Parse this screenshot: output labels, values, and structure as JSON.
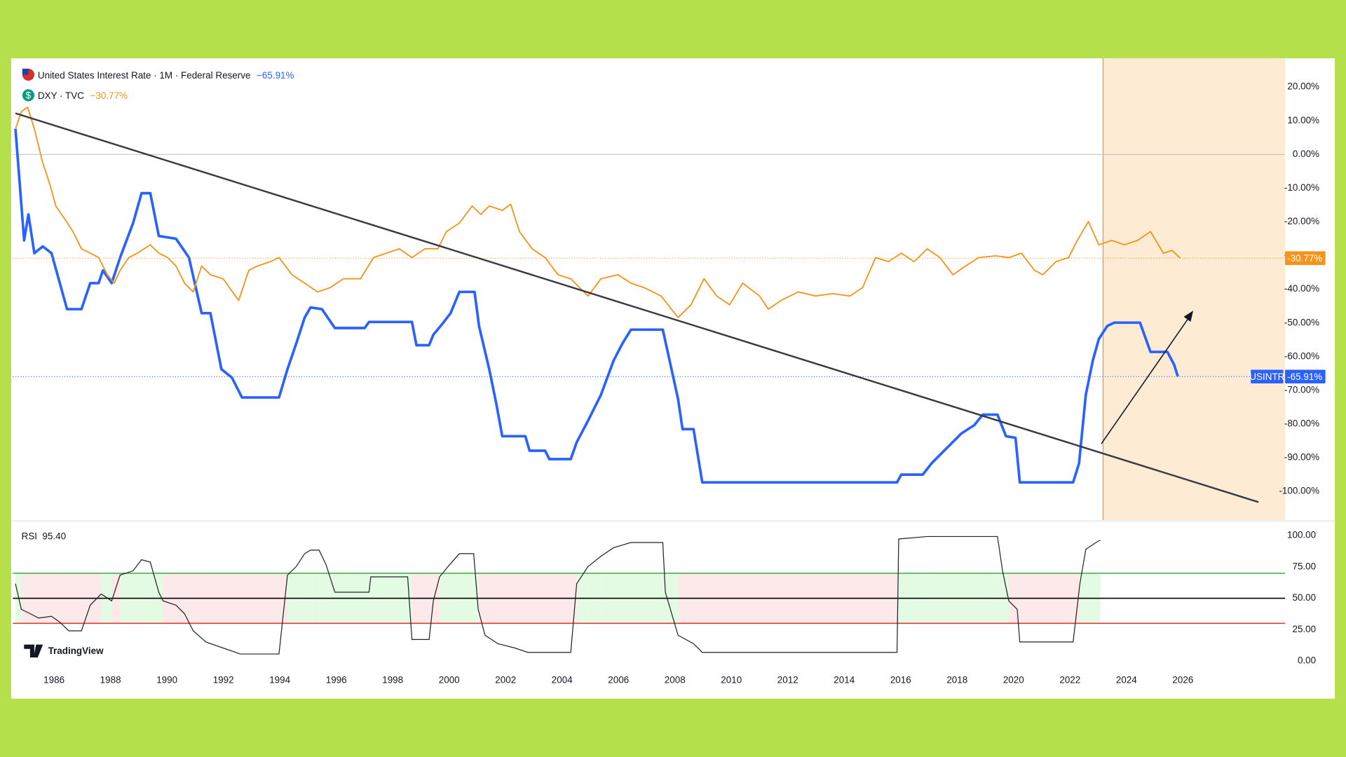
{
  "chart_data": [
    {
      "type": "line",
      "series": [
        {
          "name": "United States Interest Rate · 1M · Federal Reserve",
          "symbol": "USINTR",
          "last_label": "−65.91%",
          "badge_label": "-65.91%",
          "color": "#2962ff",
          "x": [
            1984.63,
            1984.94,
            1985.09,
            1985.3,
            1985.6,
            1985.91,
            1986.46,
            1986.97,
            1987.28,
            1987.58,
            1987.73,
            1988.04,
            1988.34,
            1988.8,
            1989.1,
            1989.41,
            1989.71,
            1990.32,
            1990.78,
            1991.23,
            1991.54,
            1991.93,
            1992.3,
            1992.66,
            1993.97,
            1994.27,
            1994.58,
            1994.88,
            1995.09,
            1995.49,
            1995.95,
            1997.01,
            1997.16,
            1998.68,
            1998.84,
            1999.29,
            1999.44,
            1999.75,
            2000.05,
            2000.36,
            2000.9,
            2001.06,
            2001.42,
            2001.67,
            2001.88,
            2002.7,
            2002.85,
            2003.4,
            2003.55,
            2004.31,
            2004.52,
            2004.92,
            2005.38,
            2005.83,
            2006.14,
            2006.44,
            2007.57,
            2007.81,
            2008.11,
            2008.27,
            2008.66,
            2008.97,
            2015.87,
            2016.02,
            2016.78,
            2017.09,
            2017.54,
            2018.15,
            2018.61,
            2018.91,
            2019.43,
            2019.73,
            2020.07,
            2020.22,
            2022.11,
            2022.32,
            2022.56,
            2022.81,
            2023.02,
            2023.32,
            2023.57,
            2024.48,
            2024.69,
            2024.85,
            2025.45,
            2025.69,
            2025.82
          ],
          "values": [
            7.6,
            -25.5,
            -17.8,
            -29.3,
            -27.3,
            -29.3,
            -45.9,
            -45.9,
            -38.2,
            -38.2,
            -34.4,
            -38.2,
            -30.6,
            -20.4,
            -11.5,
            -11.5,
            -24.2,
            -25.0,
            -30.6,
            -47.1,
            -47.1,
            -63.7,
            -66.2,
            -72.1,
            -72.1,
            -63.7,
            -56.1,
            -48.4,
            -45.4,
            -45.9,
            -51.5,
            -51.5,
            -49.7,
            -49.7,
            -56.6,
            -56.6,
            -53.5,
            -50.4,
            -47.1,
            -40.8,
            -40.8,
            -51.0,
            -63.7,
            -73.9,
            -83.6,
            -83.6,
            -87.9,
            -87.9,
            -90.4,
            -90.4,
            -85.4,
            -79.0,
            -71.3,
            -61.1,
            -56.1,
            -52.0,
            -52.0,
            -61.1,
            -72.6,
            -81.5,
            -81.5,
            -97.3,
            -97.3,
            -95.0,
            -95.0,
            -91.7,
            -87.9,
            -82.8,
            -80.3,
            -77.2,
            -77.2,
            -83.6,
            -84.1,
            -97.3,
            -97.3,
            -91.7,
            -71.3,
            -61.1,
            -54.8,
            -50.9,
            -49.9,
            -49.9,
            -54.8,
            -58.6,
            -58.6,
            -62.4,
            -65.91
          ]
        },
        {
          "name": "DXY · TVC",
          "last_label": "−30.77%",
          "badge_label": "-30.77%",
          "color": "#f7931a",
          "x": [
            1984.63,
            1984.84,
            1985.06,
            1985.3,
            1985.6,
            1985.85,
            1986.06,
            1986.37,
            1986.67,
            1986.97,
            1987.28,
            1987.58,
            1987.89,
            1988.13,
            1988.34,
            1988.65,
            1988.95,
            1989.41,
            1989.71,
            1990.02,
            1990.32,
            1990.62,
            1990.93,
            1991.23,
            1991.54,
            1991.99,
            1992.54,
            1992.9,
            1993.21,
            1993.67,
            1993.97,
            1994.43,
            1994.88,
            1995.34,
            1995.79,
            1996.25,
            1996.86,
            1997.32,
            1997.77,
            1998.23,
            1998.68,
            1999.14,
            1999.6,
            1999.9,
            2000.36,
            2000.81,
            2001.12,
            2001.42,
            2001.88,
            2002.18,
            2002.49,
            2002.94,
            2003.4,
            2003.86,
            2004.31,
            2004.92,
            2005.38,
            2005.98,
            2006.44,
            2006.9,
            2007.51,
            2008.11,
            2008.57,
            2009.03,
            2009.48,
            2009.94,
            2010.4,
            2011.0,
            2011.31,
            2011.76,
            2012.37,
            2012.98,
            2013.59,
            2014.2,
            2014.65,
            2015.11,
            2015.57,
            2016.02,
            2016.48,
            2016.94,
            2017.39,
            2017.85,
            2018.3,
            2018.76,
            2019.37,
            2019.83,
            2020.28,
            2020.74,
            2021.04,
            2021.5,
            2021.95,
            2022.26,
            2022.65,
            2023.02,
            2023.48,
            2023.93,
            2024.39,
            2024.85,
            2025.31,
            2025.61,
            2025.91
          ],
          "values": [
            7.6,
            12.7,
            14.0,
            7.6,
            -2.5,
            -8.9,
            -15.3,
            -19.1,
            -22.9,
            -28.0,
            -29.3,
            -30.6,
            -35.7,
            -38.2,
            -34.4,
            -30.6,
            -29.3,
            -26.8,
            -29.3,
            -30.6,
            -33.1,
            -38.2,
            -40.8,
            -33.1,
            -35.7,
            -36.9,
            -43.3,
            -34.4,
            -33.1,
            -31.8,
            -30.6,
            -35.7,
            -38.2,
            -40.8,
            -39.5,
            -36.9,
            -36.9,
            -30.6,
            -29.3,
            -28.0,
            -30.6,
            -28.0,
            -28.0,
            -22.9,
            -20.4,
            -15.3,
            -17.8,
            -15.3,
            -16.6,
            -14.8,
            -22.9,
            -28.0,
            -30.6,
            -35.7,
            -36.9,
            -42.0,
            -36.9,
            -35.7,
            -38.2,
            -39.5,
            -42.0,
            -48.4,
            -44.6,
            -36.9,
            -42.0,
            -44.6,
            -38.2,
            -42.0,
            -45.9,
            -43.3,
            -40.8,
            -42.0,
            -41.3,
            -42.0,
            -39.5,
            -30.6,
            -31.8,
            -29.3,
            -31.8,
            -28.0,
            -30.6,
            -35.7,
            -33.1,
            -30.6,
            -30.1,
            -30.6,
            -29.3,
            -34.4,
            -35.7,
            -31.8,
            -30.6,
            -25.5,
            -19.9,
            -26.8,
            -25.5,
            -26.8,
            -25.5,
            -22.9,
            -29.3,
            -28.5,
            -30.77
          ]
        }
      ],
      "xlim": [
        1984.54,
        2029.62
      ],
      "xticks": [
        1986,
        1988,
        1990,
        1992,
        1994,
        1996,
        1998,
        2000,
        2002,
        2004,
        2006,
        2008,
        2010,
        2012,
        2014,
        2016,
        2018,
        2020,
        2022,
        2024,
        2026
      ],
      "ylim": [
        -108.5,
        28.5
      ],
      "yticks": [
        {
          "value": 20,
          "label": "20.00%"
        },
        {
          "value": 10,
          "label": "10.00%"
        },
        {
          "value": 0,
          "label": "0.00%"
        },
        {
          "value": -10,
          "label": "-10.00%"
        },
        {
          "value": -20,
          "label": "-20.00%"
        },
        {
          "value": -30,
          "label": "-30.00%"
        },
        {
          "value": -40,
          "label": "-40.00%"
        },
        {
          "value": -50,
          "label": "-50.00%"
        },
        {
          "value": -60,
          "label": "-60.00%"
        },
        {
          "value": -70,
          "label": "-70.00%"
        },
        {
          "value": -80,
          "label": "-80.00%"
        },
        {
          "value": -90,
          "label": "-90.00%"
        },
        {
          "value": -100,
          "label": "-100.00%"
        }
      ],
      "zero_line": 0
    },
    {
      "type": "rsi",
      "title": "RSI",
      "current": {
        "value": 95.4,
        "label": "95.40"
      },
      "color": "#222222",
      "x": [
        1984.63,
        1984.84,
        1985.15,
        1985.45,
        1985.91,
        1986.21,
        1986.52,
        1986.97,
        1987.28,
        1987.67,
        1988.04,
        1988.34,
        1988.8,
        1989.1,
        1989.41,
        1989.71,
        1989.86,
        1990.32,
        1990.62,
        1990.93,
        1991.38,
        1991.99,
        1992.6,
        1993.97,
        1994.27,
        1994.58,
        1994.88,
        1995.09,
        1995.39,
        1995.64,
        1995.95,
        1997.16,
        1997.22,
        1998.53,
        1998.68,
        1999.29,
        1999.44,
        1999.66,
        1999.96,
        2000.36,
        2000.87,
        2001.03,
        2001.27,
        2001.73,
        2002.33,
        2002.79,
        2004.31,
        2004.52,
        2004.92,
        2005.38,
        2005.83,
        2006.44,
        2007.57,
        2007.66,
        2008.11,
        2008.66,
        2008.97,
        2015.87,
        2015.93,
        2016.94,
        2019.43,
        2019.61,
        2019.83,
        2020.13,
        2020.22,
        2022.11,
        2022.35,
        2022.56,
        2023.02,
        2023.08
      ],
      "values": [
        61.6,
        41.1,
        37.7,
        34.2,
        35.6,
        30.8,
        24.0,
        24.0,
        44.5,
        53.4,
        47.9,
        68.5,
        71.9,
        80.8,
        78.8,
        54.8,
        47.9,
        44.5,
        37.7,
        24.0,
        15.1,
        10.3,
        5.5,
        5.5,
        68.5,
        75.3,
        85.6,
        88.4,
        88.4,
        76.7,
        54.8,
        54.8,
        67.1,
        67.1,
        17.1,
        17.1,
        47.9,
        67.1,
        75.3,
        85.6,
        85.6,
        41.1,
        20.5,
        13.7,
        10.3,
        6.8,
        6.8,
        61.6,
        75.3,
        83.6,
        90.4,
        94.5,
        94.5,
        54.8,
        20.5,
        13.7,
        6.8,
        6.8,
        97.3,
        99.3,
        99.3,
        71.9,
        47.9,
        41.1,
        15.1,
        15.1,
        61.6,
        89.0,
        95.9,
        95.9
      ],
      "ylim": [
        -8.2,
        111
      ],
      "yticks": [
        {
          "value": 100,
          "label": "100.00"
        },
        {
          "value": 75,
          "label": "75.00"
        },
        {
          "value": 50,
          "label": "50.00"
        },
        {
          "value": 25,
          "label": "25.00"
        },
        {
          "value": 0,
          "label": "0.00"
        }
      ],
      "levels": [
        {
          "value": 70,
          "color": "#4caf50"
        },
        {
          "value": 50,
          "color": "#000000"
        },
        {
          "value": 30,
          "color": "#e53935"
        }
      ],
      "band_colors": {
        "above": "#e3fbe3",
        "below": "#fde8ea"
      }
    }
  ],
  "watermark": "TradingView"
}
